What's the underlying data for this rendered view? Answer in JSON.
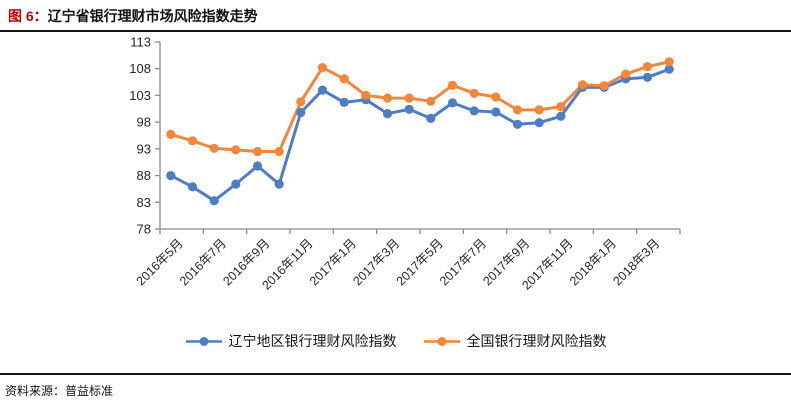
{
  "header": {
    "figure_label": "图 6：",
    "title": "辽宁省银行理财市场风险指数走势",
    "figure_label_color": "#c00000"
  },
  "chart_data": {
    "type": "line",
    "title": "辽宁省银行理财市场风险指数走势",
    "categories": [
      "2016年5月",
      "2016年6月",
      "2016年7月",
      "2016年8月",
      "2016年9月",
      "2016年10月",
      "2016年11月",
      "2016年12月",
      "2017年1月",
      "2017年2月",
      "2017年3月",
      "2017年4月",
      "2017年5月",
      "2017年6月",
      "2017年7月",
      "2017年8月",
      "2017年9月",
      "2017年10月",
      "2017年11月",
      "2017年12月",
      "2018年1月",
      "2018年2月",
      "2018年3月",
      "2018年4月"
    ],
    "x_tick_label_every": 2,
    "x_tick_labels_shown": [
      "2016年5月",
      "2016年7月",
      "2016年9月",
      "2016年11月",
      "2017年1月",
      "2017年3月",
      "2017年5月",
      "2017年7月",
      "2017年9月",
      "2017年11月",
      "2018年1月",
      "2018年3月"
    ],
    "series": [
      {
        "name": "辽宁地区银行理财风险指数",
        "color": "#4e7ec1",
        "values": [
          88.0,
          85.9,
          83.3,
          86.4,
          89.8,
          86.4,
          99.8,
          104.0,
          101.7,
          102.2,
          99.6,
          100.4,
          98.7,
          101.6,
          100.1,
          99.9,
          97.6,
          97.9,
          99.1,
          104.5,
          104.5,
          106.1,
          106.4,
          107.9
        ]
      },
      {
        "name": "全国银行理财风险指数",
        "color": "#f0873c",
        "values": [
          95.7,
          94.5,
          93.1,
          92.8,
          92.5,
          92.5,
          101.8,
          108.2,
          106.1,
          103.0,
          102.5,
          102.5,
          101.9,
          104.9,
          103.4,
          102.7,
          100.3,
          100.3,
          100.9,
          105.0,
          104.8,
          107.0,
          108.4,
          109.3
        ]
      }
    ],
    "ylim": [
      78,
      113
    ],
    "yticks": [
      78,
      83,
      88,
      93,
      98,
      103,
      108,
      113
    ],
    "grid": false,
    "legend_position": "bottom",
    "axis_color": "#8c8c8c",
    "tick_label_color": "#262626",
    "marker": "circle",
    "xlabel": "",
    "ylabel": ""
  },
  "footer": {
    "source": "资料来源：普益标准"
  }
}
